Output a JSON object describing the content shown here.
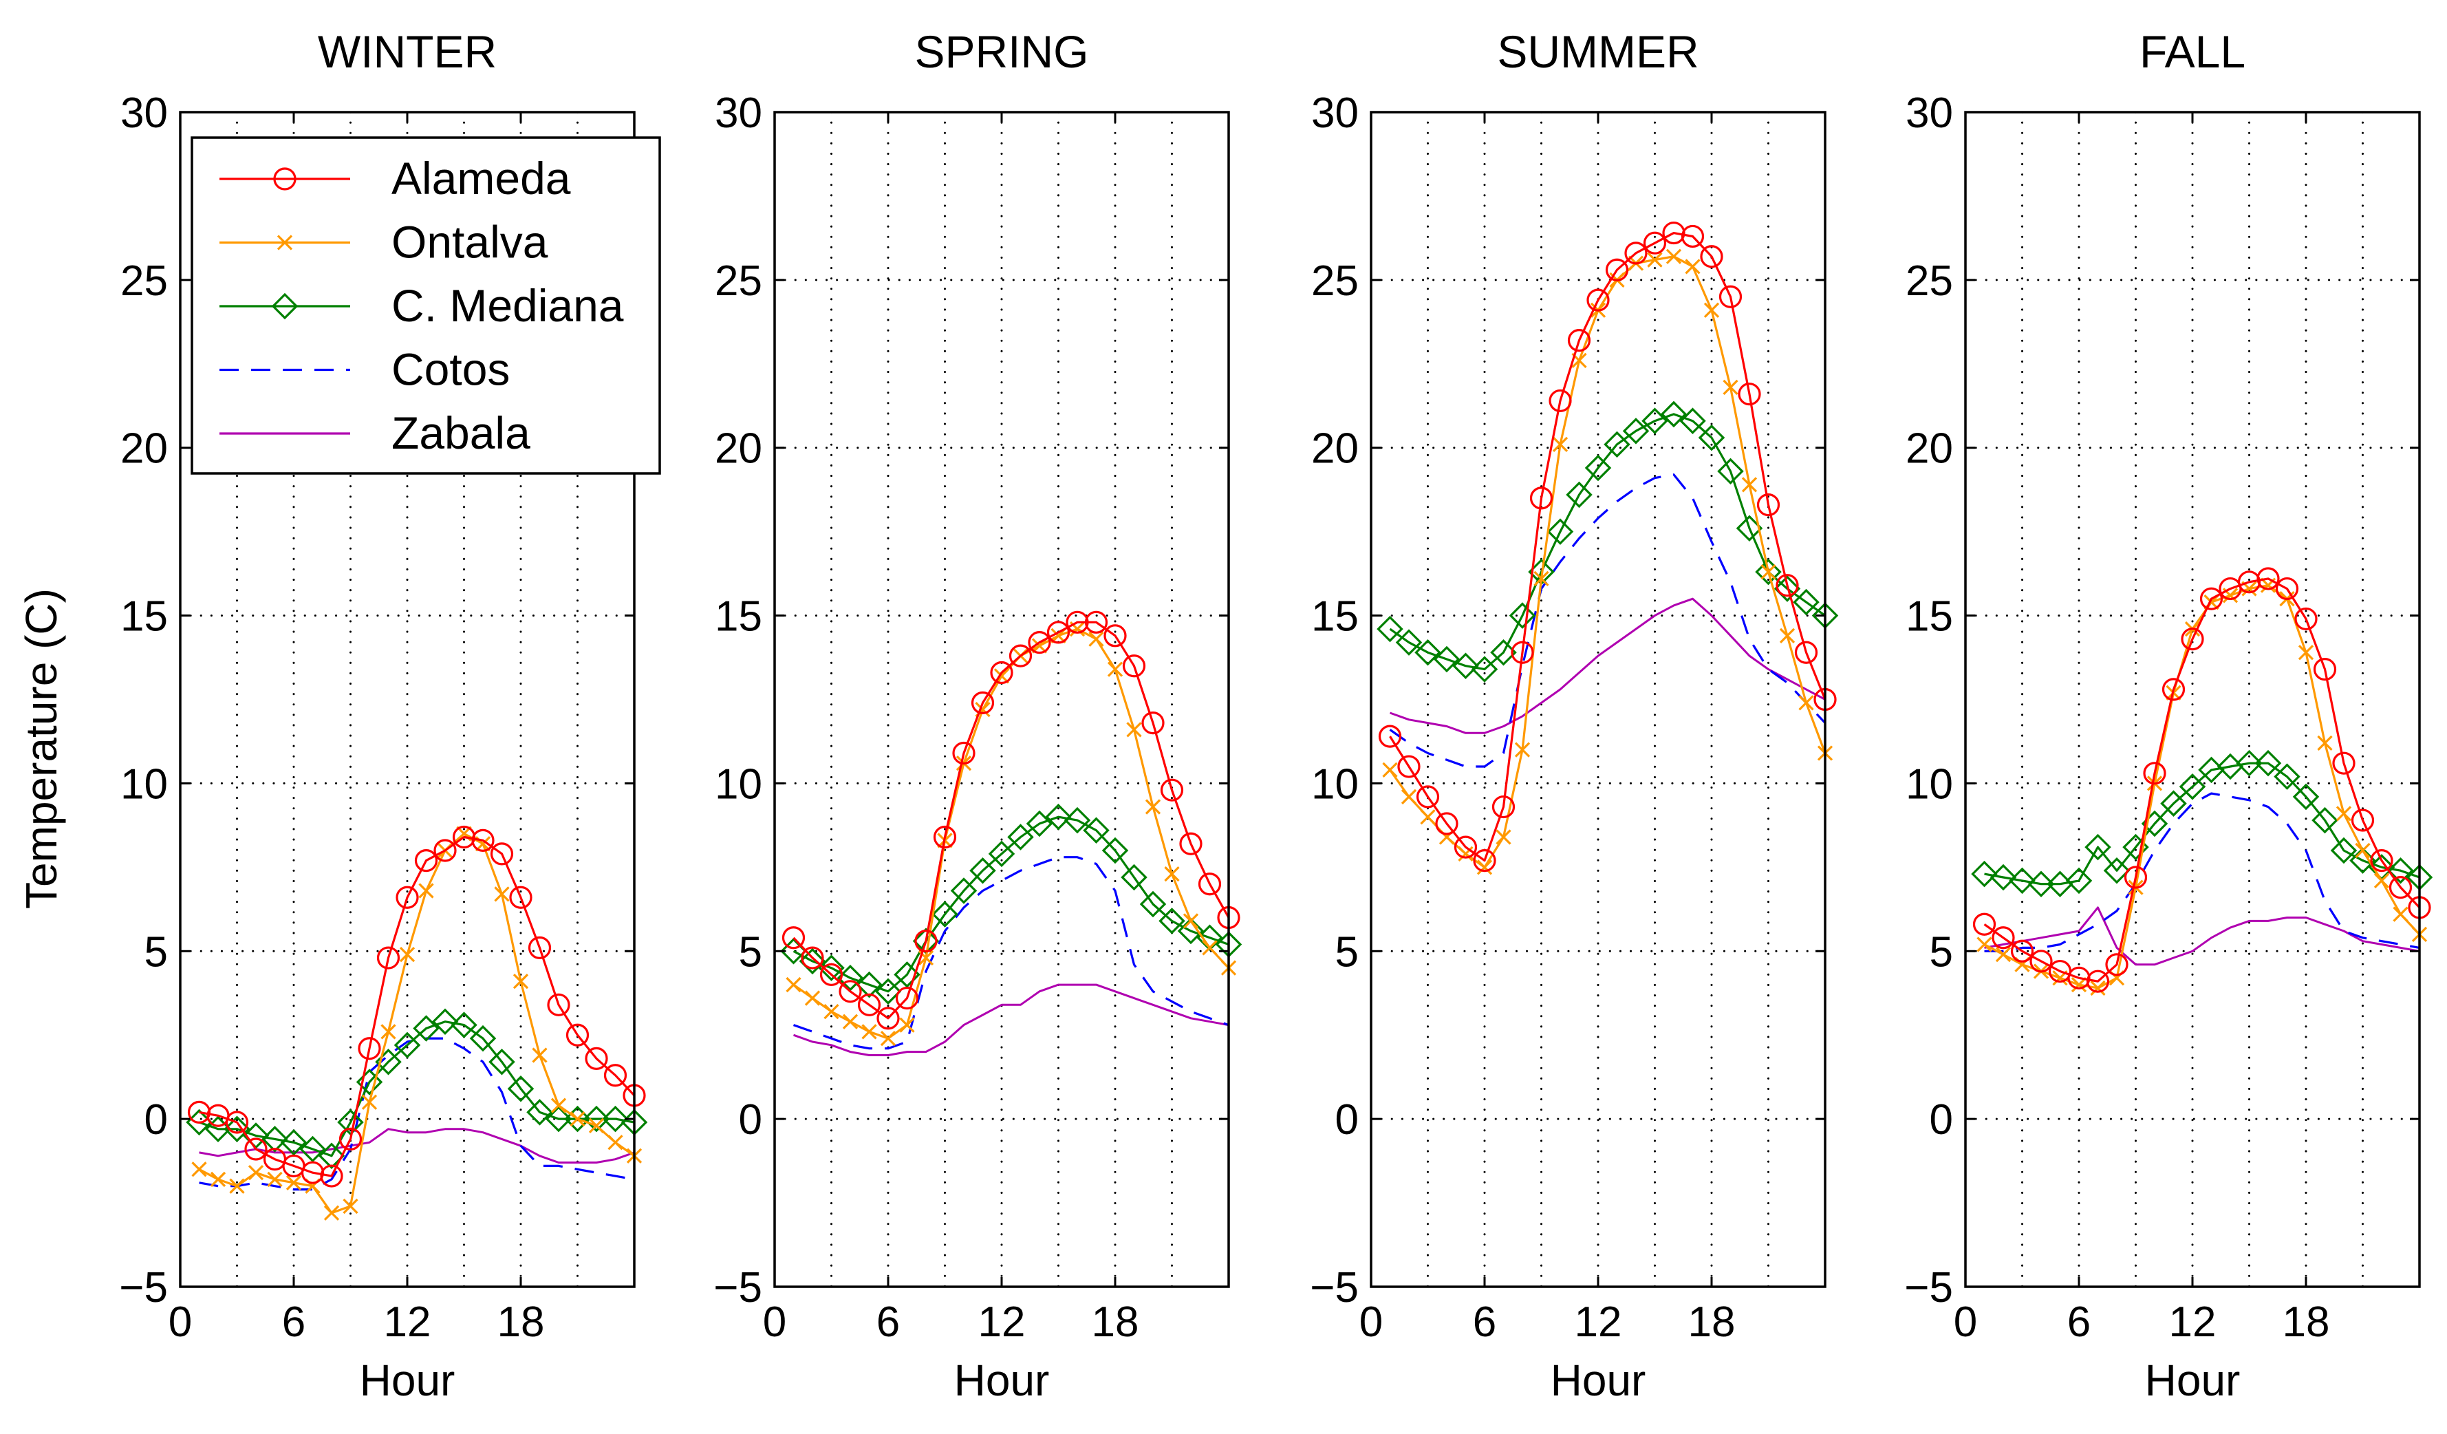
{
  "figure": {
    "ylabel": "Temperature (C)",
    "xlabel": "Hour",
    "xlim": [
      0,
      24
    ],
    "ylim": [
      -5,
      30
    ],
    "xticks": [
      0,
      6,
      12,
      18
    ],
    "yticks": [
      -5,
      0,
      5,
      10,
      15,
      20,
      25,
      30
    ],
    "grid": true,
    "legend_location": "top-left of first panel"
  },
  "legend": [
    {
      "name": "Alameda",
      "color": "#ff0000",
      "marker": "circle",
      "dash": "solid"
    },
    {
      "name": "Ontalva",
      "color": "#ff9900",
      "marker": "x",
      "dash": "solid"
    },
    {
      "name": "C. Mediana",
      "color": "#008000",
      "marker": "diamond",
      "dash": "solid"
    },
    {
      "name": "Cotos",
      "color": "#0000ff",
      "marker": "none",
      "dash": "dashed"
    },
    {
      "name": "Zabala",
      "color": "#b000b0",
      "marker": "none",
      "dash": "solid"
    }
  ],
  "chart_data": [
    {
      "type": "line",
      "title": "WINTER",
      "xlabel": "Hour",
      "ylabel": "Temperature (C)",
      "xlim": [
        0,
        24
      ],
      "ylim": [
        -5,
        30
      ],
      "x": [
        1,
        2,
        3,
        4,
        5,
        6,
        7,
        8,
        9,
        10,
        11,
        12,
        13,
        14,
        15,
        16,
        17,
        18,
        19,
        20,
        21,
        22,
        23,
        24
      ],
      "series": [
        {
          "name": "Alameda",
          "values": [
            0.2,
            0.1,
            -0.1,
            -0.9,
            -1.2,
            -1.4,
            -1.6,
            -1.7,
            -0.6,
            2.1,
            4.8,
            6.6,
            7.7,
            8.0,
            8.4,
            8.3,
            7.9,
            6.6,
            5.1,
            3.4,
            2.5,
            1.8,
            1.3,
            0.7
          ]
        },
        {
          "name": "Ontalva",
          "values": [
            -1.5,
            -1.8,
            -2.0,
            -1.6,
            -1.8,
            -1.9,
            -2.0,
            -2.8,
            -2.6,
            0.5,
            2.6,
            4.9,
            6.8,
            8.0,
            8.5,
            8.2,
            6.7,
            4.1,
            1.9,
            0.4,
            0.0,
            -0.2,
            -0.7,
            -1.1
          ]
        },
        {
          "name": "C. Mediana",
          "values": [
            -0.1,
            -0.3,
            -0.3,
            -0.5,
            -0.6,
            -0.7,
            -0.9,
            -1.1,
            -0.1,
            1.1,
            1.7,
            2.2,
            2.7,
            2.9,
            2.8,
            2.4,
            1.7,
            0.9,
            0.2,
            0.0,
            0.0,
            0.0,
            0.0,
            -0.1
          ]
        },
        {
          "name": "Cotos",
          "values": [
            -1.9,
            -2.0,
            -2.0,
            -1.9,
            -2.0,
            -2.1,
            -2.1,
            -1.8,
            -0.9,
            1.4,
            1.9,
            2.3,
            2.4,
            2.4,
            2.1,
            1.7,
            0.8,
            -0.8,
            -1.4,
            -1.4,
            -1.5,
            -1.6,
            -1.7,
            -1.8
          ]
        },
        {
          "name": "Zabala",
          "values": [
            -1.0,
            -1.1,
            -1.0,
            -0.9,
            -1.0,
            -1.0,
            -1.0,
            -0.9,
            -0.8,
            -0.7,
            -0.3,
            -0.4,
            -0.4,
            -0.3,
            -0.3,
            -0.4,
            -0.6,
            -0.8,
            -1.1,
            -1.3,
            -1.3,
            -1.3,
            -1.2,
            -1.0
          ]
        }
      ]
    },
    {
      "type": "line",
      "title": "SPRING",
      "xlabel": "Hour",
      "ylabel": "Temperature (C)",
      "xlim": [
        0,
        24
      ],
      "ylim": [
        -5,
        30
      ],
      "x": [
        1,
        2,
        3,
        4,
        5,
        6,
        7,
        8,
        9,
        10,
        11,
        12,
        13,
        14,
        15,
        16,
        17,
        18,
        19,
        20,
        21,
        22,
        23,
        24
      ],
      "series": [
        {
          "name": "Alameda",
          "values": [
            5.4,
            4.8,
            4.3,
            3.8,
            3.4,
            3.0,
            3.6,
            5.3,
            8.4,
            10.9,
            12.4,
            13.3,
            13.8,
            14.2,
            14.5,
            14.8,
            14.8,
            14.4,
            13.5,
            11.8,
            9.8,
            8.2,
            7.0,
            6.0
          ]
        },
        {
          "name": "Ontalva",
          "values": [
            4.0,
            3.6,
            3.2,
            2.9,
            2.6,
            2.4,
            2.8,
            4.8,
            8.3,
            10.6,
            12.2,
            13.2,
            13.8,
            14.1,
            14.4,
            14.6,
            14.3,
            13.4,
            11.6,
            9.3,
            7.3,
            5.9,
            5.1,
            4.5
          ]
        },
        {
          "name": "C. Mediana",
          "values": [
            5.0,
            4.7,
            4.5,
            4.2,
            4.0,
            3.8,
            4.3,
            5.3,
            6.1,
            6.8,
            7.4,
            7.9,
            8.4,
            8.8,
            9.0,
            8.9,
            8.6,
            8.0,
            7.2,
            6.4,
            5.9,
            5.6,
            5.4,
            5.2
          ]
        },
        {
          "name": "Cotos",
          "values": [
            2.8,
            2.6,
            2.4,
            2.2,
            2.1,
            2.1,
            2.3,
            4.4,
            5.6,
            6.3,
            6.8,
            7.1,
            7.4,
            7.6,
            7.8,
            7.8,
            7.6,
            6.8,
            4.6,
            3.8,
            3.5,
            3.2,
            3.0,
            2.8
          ]
        },
        {
          "name": "Zabala",
          "values": [
            2.5,
            2.3,
            2.2,
            2.0,
            1.9,
            1.9,
            2.0,
            2.0,
            2.3,
            2.8,
            3.1,
            3.4,
            3.4,
            3.8,
            4.0,
            4.0,
            4.0,
            3.8,
            3.6,
            3.4,
            3.2,
            3.0,
            2.9,
            2.8
          ]
        }
      ]
    },
    {
      "type": "line",
      "title": "SUMMER",
      "xlabel": "Hour",
      "ylabel": "Temperature (C)",
      "xlim": [
        0,
        24
      ],
      "ylim": [
        -5,
        30
      ],
      "x": [
        1,
        2,
        3,
        4,
        5,
        6,
        7,
        8,
        9,
        10,
        11,
        12,
        13,
        14,
        15,
        16,
        17,
        18,
        19,
        20,
        21,
        22,
        23,
        24
      ],
      "series": [
        {
          "name": "Alameda",
          "values": [
            11.4,
            10.5,
            9.6,
            8.8,
            8.1,
            7.7,
            9.3,
            13.9,
            18.5,
            21.4,
            23.2,
            24.4,
            25.3,
            25.8,
            26.1,
            26.4,
            26.3,
            25.7,
            24.5,
            21.6,
            18.3,
            15.9,
            13.9,
            12.5
          ]
        },
        {
          "name": "Ontalva",
          "values": [
            10.4,
            9.6,
            9.0,
            8.4,
            7.9,
            7.5,
            8.4,
            11.0,
            16.1,
            20.1,
            22.6,
            24.1,
            25.0,
            25.5,
            25.6,
            25.7,
            25.4,
            24.1,
            21.8,
            18.9,
            16.3,
            14.4,
            12.4,
            10.9
          ]
        },
        {
          "name": "C. Mediana",
          "values": [
            14.6,
            14.2,
            13.9,
            13.7,
            13.5,
            13.4,
            13.9,
            15.0,
            16.3,
            17.5,
            18.6,
            19.4,
            20.1,
            20.5,
            20.8,
            21.0,
            20.8,
            20.3,
            19.3,
            17.6,
            16.3,
            15.8,
            15.4,
            15.0
          ]
        },
        {
          "name": "Cotos",
          "values": [
            11.6,
            11.2,
            10.9,
            10.7,
            10.5,
            10.5,
            10.9,
            13.5,
            15.8,
            16.6,
            17.3,
            17.9,
            18.4,
            18.8,
            19.1,
            19.2,
            18.5,
            17.2,
            16.0,
            14.3,
            13.4,
            13.0,
            12.4,
            11.8
          ]
        },
        {
          "name": "Zabala",
          "values": [
            12.1,
            11.9,
            11.8,
            11.7,
            11.5,
            11.5,
            11.7,
            12.0,
            12.4,
            12.8,
            13.3,
            13.8,
            14.2,
            14.6,
            15.0,
            15.3,
            15.5,
            15.0,
            14.4,
            13.8,
            13.4,
            13.1,
            12.8,
            12.5
          ]
        }
      ]
    },
    {
      "type": "line",
      "title": "FALL",
      "xlabel": "Hour",
      "ylabel": "Temperature (C)",
      "xlim": [
        0,
        24
      ],
      "ylim": [
        -5,
        30
      ],
      "x": [
        1,
        2,
        3,
        4,
        5,
        6,
        7,
        8,
        9,
        10,
        11,
        12,
        13,
        14,
        15,
        16,
        17,
        18,
        19,
        20,
        21,
        22,
        23,
        24
      ],
      "series": [
        {
          "name": "Alameda",
          "values": [
            5.8,
            5.4,
            5.0,
            4.7,
            4.4,
            4.2,
            4.1,
            4.6,
            7.2,
            10.3,
            12.8,
            14.3,
            15.5,
            15.8,
            16.0,
            16.1,
            15.8,
            14.9,
            13.4,
            10.6,
            8.9,
            7.7,
            6.9,
            6.3
          ]
        },
        {
          "name": "Ontalva",
          "values": [
            5.2,
            4.9,
            4.6,
            4.4,
            4.2,
            4.0,
            3.9,
            4.2,
            6.9,
            10.0,
            12.7,
            14.6,
            15.4,
            15.6,
            15.8,
            15.9,
            15.5,
            13.9,
            11.2,
            9.1,
            8.0,
            7.1,
            6.1,
            5.5
          ]
        },
        {
          "name": "C. Mediana",
          "values": [
            7.3,
            7.2,
            7.1,
            7.0,
            7.0,
            7.1,
            8.1,
            7.4,
            8.1,
            8.8,
            9.4,
            9.9,
            10.4,
            10.5,
            10.6,
            10.6,
            10.2,
            9.6,
            8.9,
            8.0,
            7.7,
            7.5,
            7.4,
            7.2
          ]
        },
        {
          "name": "Cotos",
          "values": [
            5.0,
            5.0,
            5.1,
            5.1,
            5.2,
            5.5,
            5.8,
            6.2,
            7.0,
            8.0,
            8.8,
            9.4,
            9.7,
            9.6,
            9.5,
            9.3,
            8.8,
            8.0,
            6.5,
            5.6,
            5.4,
            5.3,
            5.2,
            5.1
          ]
        },
        {
          "name": "Zabala",
          "values": [
            5.1,
            5.2,
            5.3,
            5.4,
            5.5,
            5.6,
            6.3,
            5.1,
            4.6,
            4.6,
            4.8,
            5.0,
            5.4,
            5.7,
            5.9,
            5.9,
            6.0,
            6.0,
            5.8,
            5.6,
            5.3,
            5.2,
            5.1,
            5.0
          ]
        }
      ]
    }
  ]
}
